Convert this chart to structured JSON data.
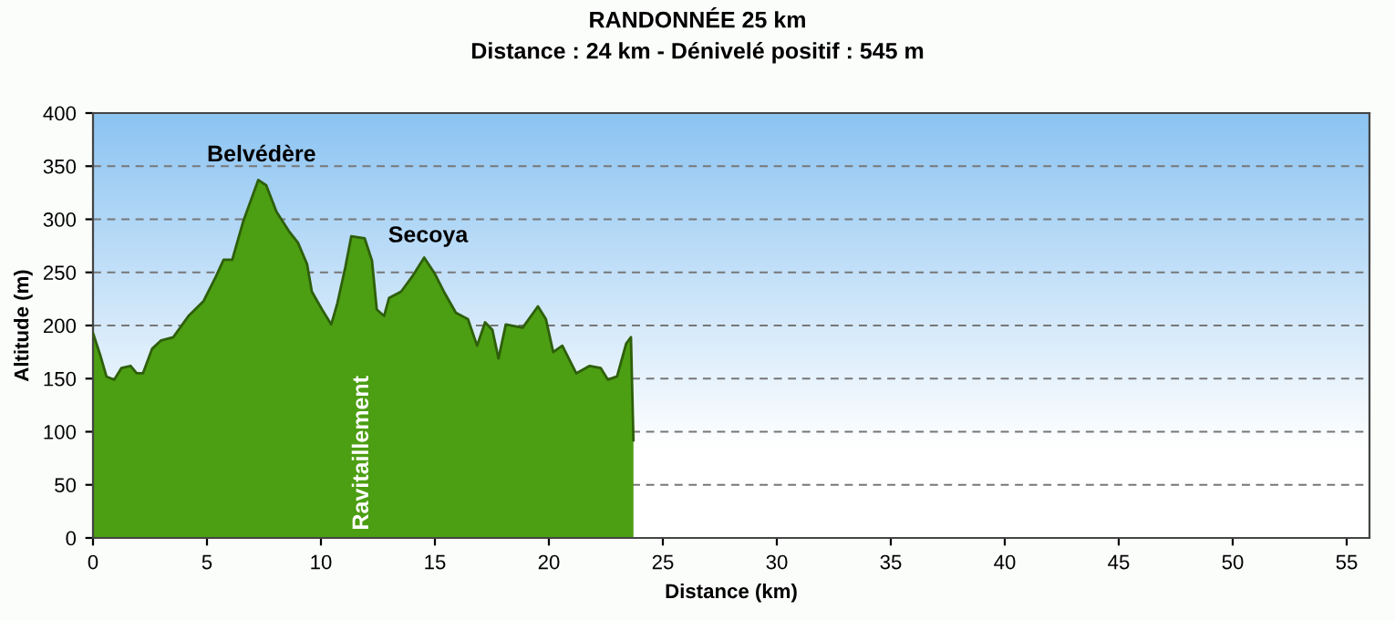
{
  "chart_data": {
    "type": "area",
    "title": "RANDONNÉE 25 km",
    "subtitle": "Distance : 24 km - Dénivelé positif : 545 m",
    "xlabel": "Distance (km)",
    "ylabel": "Altitude (m)",
    "x": [
      0,
      0.32,
      0.59,
      0.93,
      1.25,
      1.65,
      1.92,
      2.19,
      2.59,
      2.99,
      3.52,
      4.19,
      4.85,
      5.39,
      5.73,
      6.11,
      6.59,
      7.25,
      7.6,
      8.05,
      8.59,
      8.99,
      9.39,
      9.6,
      10.05,
      10.45,
      10.72,
      11.07,
      11.33,
      11.92,
      12.24,
      12.45,
      12.77,
      12.99,
      13.52,
      14.0,
      14.53,
      14.99,
      15.39,
      15.92,
      16.45,
      16.85,
      17.2,
      17.52,
      17.79,
      18.11,
      18.85,
      19.52,
      19.87,
      20.19,
      20.59,
      21.2,
      21.79,
      22.27,
      22.59,
      22.99,
      23.39,
      23.6,
      23.71
    ],
    "series": [
      {
        "color": "#4c9e12",
        "values": [
          193,
          172,
          152,
          149,
          160,
          162,
          155,
          155,
          178,
          186,
          189,
          209,
          223,
          246,
          262,
          262,
          298,
          337,
          332,
          307,
          289,
          278,
          258,
          232,
          215,
          201,
          221,
          255,
          284,
          282,
          261,
          215,
          209,
          226,
          232,
          246,
          264,
          249,
          232,
          212,
          206,
          181,
          203,
          196,
          169,
          201,
          198,
          218,
          206,
          175,
          181,
          155,
          162,
          160,
          149,
          152,
          183,
          189,
          92
        ]
      }
    ],
    "xlim": [
      0,
      56
    ],
    "ylim": [
      0,
      400
    ],
    "xticks": [
      0,
      5,
      10,
      15,
      20,
      25,
      30,
      35,
      40,
      45,
      50,
      55
    ],
    "yticks": [
      0,
      50,
      100,
      150,
      200,
      250,
      300,
      350,
      400
    ],
    "grid": "y",
    "annotations": [
      "Belvédère",
      "Secoya",
      "Ravitaillement"
    ]
  }
}
